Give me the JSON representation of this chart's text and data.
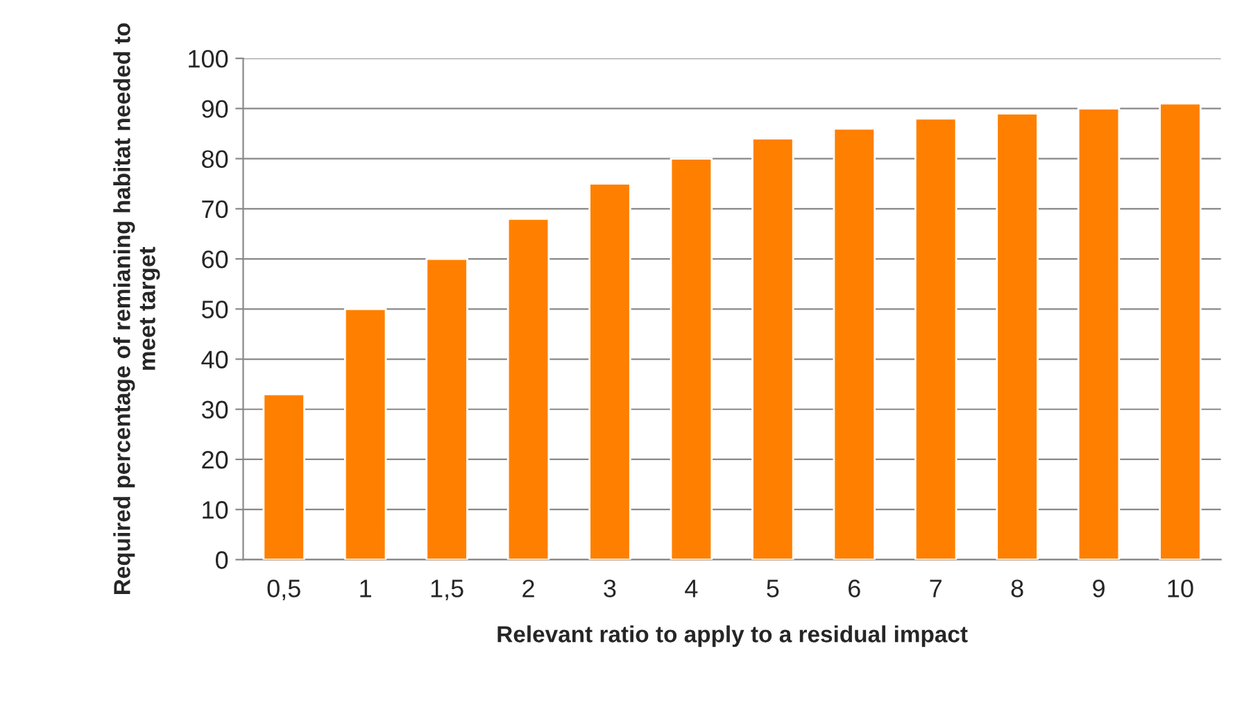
{
  "chart_data": {
    "type": "bar",
    "xlabel": "Relevant ratio to apply to a residual impact",
    "ylabel": "Required percentage of remianing habitat needed to meet target",
    "categories": [
      "0,5",
      "1",
      "1,5",
      "2",
      "3",
      "4",
      "5",
      "6",
      "7",
      "8",
      "9",
      "10"
    ],
    "values": [
      33,
      50,
      60,
      68,
      75,
      80,
      84,
      86,
      88,
      89,
      90,
      91
    ],
    "color": "#ff8000",
    "ylim": [
      0,
      100
    ],
    "yticks": [
      0,
      10,
      20,
      30,
      40,
      50,
      60,
      70,
      80,
      90,
      100
    ],
    "grid": "y",
    "legend": false
  }
}
